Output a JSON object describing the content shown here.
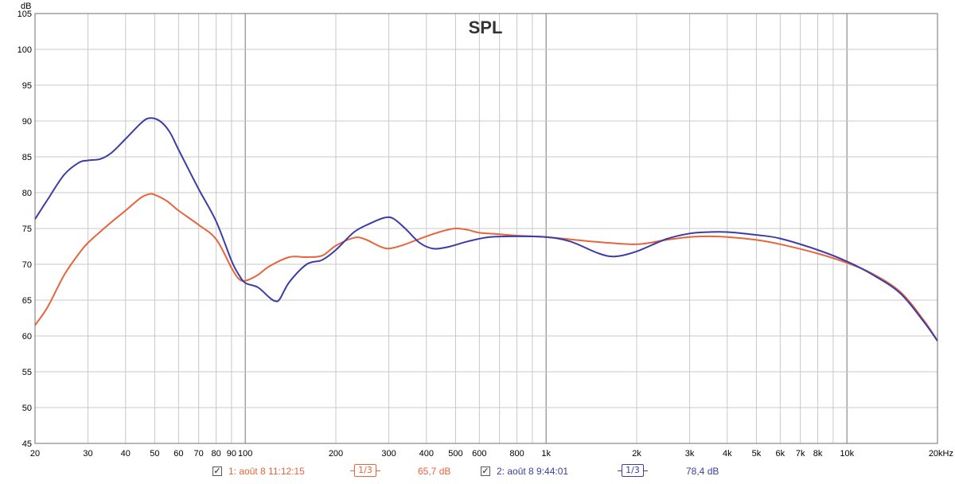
{
  "chart_data": {
    "type": "line",
    "title": "SPL",
    "ylabel": "dB",
    "xlabel": "",
    "x_scale": "log",
    "xlim": [
      20,
      20000
    ],
    "ylim": [
      45,
      105
    ],
    "grid": true,
    "y_ticks": [
      45,
      50,
      55,
      60,
      65,
      70,
      75,
      80,
      85,
      90,
      95,
      100,
      105
    ],
    "x_tick_labels": [
      {
        "v": 20,
        "t": "20"
      },
      {
        "v": 30,
        "t": "30"
      },
      {
        "v": 40,
        "t": "40"
      },
      {
        "v": 50,
        "t": "50"
      },
      {
        "v": 60,
        "t": "60"
      },
      {
        "v": 70,
        "t": "70"
      },
      {
        "v": 80,
        "t": "80"
      },
      {
        "v": 90,
        "t": "90"
      },
      {
        "v": 100,
        "t": "100"
      },
      {
        "v": 200,
        "t": "200"
      },
      {
        "v": 300,
        "t": "300"
      },
      {
        "v": 400,
        "t": "400"
      },
      {
        "v": 500,
        "t": "500"
      },
      {
        "v": 600,
        "t": "600"
      },
      {
        "v": 800,
        "t": "800"
      },
      {
        "v": 1000,
        "t": "1k"
      },
      {
        "v": 2000,
        "t": "2k"
      },
      {
        "v": 3000,
        "t": "3k"
      },
      {
        "v": 4000,
        "t": "4k"
      },
      {
        "v": 5000,
        "t": "5k"
      },
      {
        "v": 6000,
        "t": "6k"
      },
      {
        "v": 7000,
        "t": "7k"
      },
      {
        "v": 8000,
        "t": "8k"
      },
      {
        "v": 10000,
        "t": "10k"
      },
      {
        "v": 20000,
        "t": "20kHz"
      }
    ],
    "series": [
      {
        "name": "1: août 8 11:12:15",
        "color": "#e8643c",
        "points": [
          [
            20,
            61.5
          ],
          [
            22,
            64
          ],
          [
            25,
            68.5
          ],
          [
            28,
            71.5
          ],
          [
            30,
            73
          ],
          [
            35,
            75.5
          ],
          [
            40,
            77.5
          ],
          [
            45,
            79.3
          ],
          [
            48,
            79.8
          ],
          [
            50,
            79.7
          ],
          [
            55,
            78.8
          ],
          [
            60,
            77.5
          ],
          [
            70,
            75.5
          ],
          [
            80,
            73.5
          ],
          [
            90,
            69.5
          ],
          [
            95,
            68
          ],
          [
            100,
            67.7
          ],
          [
            110,
            68.5
          ],
          [
            120,
            69.7
          ],
          [
            140,
            71
          ],
          [
            160,
            71
          ],
          [
            180,
            71.2
          ],
          [
            200,
            72.6
          ],
          [
            230,
            73.7
          ],
          [
            250,
            73.5
          ],
          [
            280,
            72.5
          ],
          [
            300,
            72.2
          ],
          [
            330,
            72.6
          ],
          [
            400,
            73.9
          ],
          [
            450,
            74.6
          ],
          [
            500,
            75
          ],
          [
            550,
            74.8
          ],
          [
            600,
            74.4
          ],
          [
            700,
            74.2
          ],
          [
            800,
            74
          ],
          [
            1000,
            73.8
          ],
          [
            1500,
            73.1
          ],
          [
            2000,
            72.8
          ],
          [
            2500,
            73.4
          ],
          [
            3000,
            73.8
          ],
          [
            3500,
            73.9
          ],
          [
            4000,
            73.8
          ],
          [
            5000,
            73.4
          ],
          [
            6000,
            72.8
          ],
          [
            8000,
            71.5
          ],
          [
            10000,
            70.2
          ],
          [
            12000,
            68.8
          ],
          [
            15000,
            66.2
          ],
          [
            18000,
            62.2
          ],
          [
            20000,
            59.3
          ]
        ]
      },
      {
        "name": "2: août 8 9:44:01",
        "color": "#3c3ca6",
        "points": [
          [
            20,
            76.3
          ],
          [
            22,
            79
          ],
          [
            25,
            82.5
          ],
          [
            28,
            84.2
          ],
          [
            30,
            84.5
          ],
          [
            33,
            84.7
          ],
          [
            36,
            85.6
          ],
          [
            40,
            87.5
          ],
          [
            45,
            89.7
          ],
          [
            48,
            90.4
          ],
          [
            52,
            90
          ],
          [
            56,
            88.5
          ],
          [
            60,
            86
          ],
          [
            70,
            80.5
          ],
          [
            80,
            76
          ],
          [
            90,
            70.5
          ],
          [
            95,
            68.6
          ],
          [
            100,
            67.4
          ],
          [
            110,
            66.8
          ],
          [
            120,
            65.4
          ],
          [
            125,
            64.9
          ],
          [
            130,
            65.1
          ],
          [
            140,
            67.5
          ],
          [
            160,
            70
          ],
          [
            180,
            70.6
          ],
          [
            200,
            72
          ],
          [
            230,
            74.5
          ],
          [
            260,
            75.7
          ],
          [
            290,
            76.5
          ],
          [
            310,
            76.4
          ],
          [
            340,
            75
          ],
          [
            380,
            73
          ],
          [
            420,
            72.2
          ],
          [
            470,
            72.4
          ],
          [
            550,
            73.2
          ],
          [
            650,
            73.8
          ],
          [
            800,
            73.9
          ],
          [
            1000,
            73.8
          ],
          [
            1200,
            73.2
          ],
          [
            1500,
            71.5
          ],
          [
            1700,
            71.1
          ],
          [
            2000,
            71.8
          ],
          [
            2500,
            73.5
          ],
          [
            3000,
            74.3
          ],
          [
            3500,
            74.5
          ],
          [
            4000,
            74.5
          ],
          [
            5000,
            74.1
          ],
          [
            6000,
            73.6
          ],
          [
            8000,
            72
          ],
          [
            10000,
            70.4
          ],
          [
            12000,
            68.7
          ],
          [
            15000,
            66
          ],
          [
            18000,
            62
          ],
          [
            20000,
            59.3
          ]
        ]
      }
    ]
  },
  "legend": {
    "items": [
      {
        "label": "1: août 8 11:12:15",
        "smoothing": "1/3",
        "level": "65,7 dB",
        "color": "#e8643c",
        "checked": "✓"
      },
      {
        "label": "2: août 8 9:44:01",
        "smoothing": "1/3",
        "level": "78,4 dB",
        "color": "#3c3ca6",
        "checked": "✓"
      }
    ]
  },
  "colors": {
    "grid_minor": "#c8c8c8",
    "grid_major": "#8c8c8c",
    "plot_border": "#707070",
    "axis_text": "#000000"
  }
}
